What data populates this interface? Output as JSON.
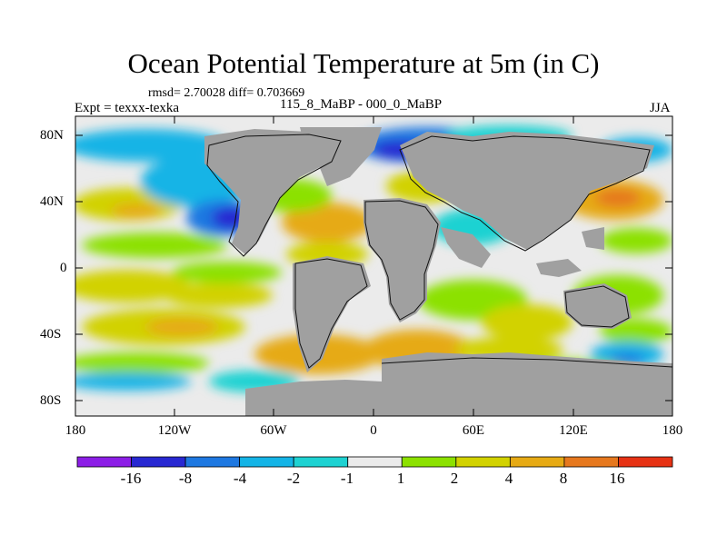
{
  "title": "Ocean Potential Temperature at 5m (in C)",
  "stats_text": "rmsd= 2.70028 diff= 0.703669",
  "expt_text": "Expt = texxx-texka",
  "subtitle": "115_8_MaBP - 000_0_MaBP",
  "season": "JJA",
  "lat_labels": [
    "80N",
    "40N",
    "0",
    "40S",
    "80S"
  ],
  "lon_labels": [
    "180",
    "120W",
    "60W",
    "0",
    "60E",
    "120E",
    "180"
  ],
  "colorbar": {
    "labels": [
      "-16",
      "-8",
      "-4",
      "-2",
      "-1",
      "1",
      "2",
      "4",
      "8",
      "16"
    ],
    "colors": [
      "#8c1ee6",
      "#2828d2",
      "#1e78e1",
      "#14b4e6",
      "#1ed2d2",
      "#ebebeb",
      "#8ce100",
      "#d2d200",
      "#e6aa14",
      "#e6781e",
      "#e63214"
    ]
  },
  "land_color": "#a0a0a0"
}
